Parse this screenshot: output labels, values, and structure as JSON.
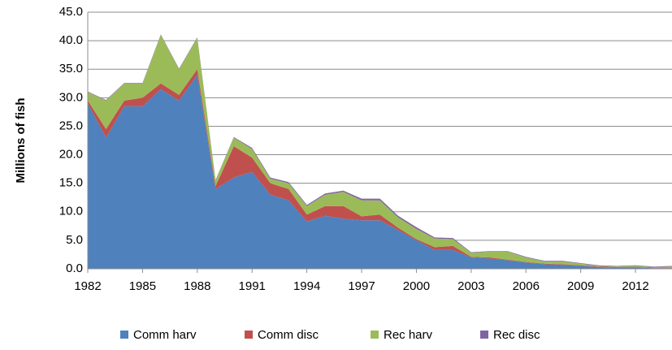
{
  "chart_data": {
    "type": "stacked-area",
    "y_label": "Millions of fish",
    "x": [
      1982,
      1983,
      1984,
      1985,
      1986,
      1987,
      1988,
      1989,
      1990,
      1991,
      1992,
      1993,
      1994,
      1995,
      1996,
      1997,
      1998,
      1999,
      2000,
      2001,
      2002,
      2003,
      2004,
      2005,
      2006,
      2007,
      2008,
      2009,
      2010,
      2011,
      2012,
      2013,
      2014
    ],
    "xlim": [
      1982,
      2014
    ],
    "xticks": [
      1982,
      1985,
      1988,
      1991,
      1994,
      1997,
      2000,
      2003,
      2006,
      2009,
      2012
    ],
    "ylim": [
      0,
      45
    ],
    "yticks": [
      {
        "value": 0,
        "label": "0.0"
      },
      {
        "value": 5,
        "label": "5.0"
      },
      {
        "value": 10,
        "label": "10.0"
      },
      {
        "value": 15,
        "label": "15.0"
      },
      {
        "value": 20,
        "label": "20.0"
      },
      {
        "value": 25,
        "label": "25.0"
      },
      {
        "value": 30,
        "label": "30.0"
      },
      {
        "value": 35,
        "label": "35.0"
      },
      {
        "value": 40,
        "label": "40.0"
      },
      {
        "value": 45,
        "label": "45.0"
      }
    ],
    "grid": true,
    "legend": "bottom",
    "series": [
      {
        "name": "Comm harv",
        "color": "#4f81bd",
        "values": [
          29,
          23,
          28.5,
          28.5,
          31.5,
          29.5,
          34,
          14,
          16,
          17,
          13,
          12,
          8.3,
          9.3,
          8.8,
          8.5,
          8.5,
          6.8,
          5,
          3.3,
          3.3,
          2,
          1.8,
          1.5,
          1.1,
          0.8,
          0.7,
          0.5,
          0.3,
          0.2,
          0.2,
          0.1,
          0.1
        ]
      },
      {
        "name": "Comm disc",
        "color": "#c0504d",
        "values": [
          0.5,
          1.5,
          1,
          1.5,
          1,
          1,
          1,
          0.5,
          5.5,
          2.5,
          2,
          2,
          1.2,
          1.7,
          2.2,
          0.7,
          1,
          0.4,
          0.2,
          0.5,
          0.7,
          0.1,
          0.2,
          0.1,
          0.1,
          0.1,
          0.1,
          0.1,
          0.1,
          0.1,
          0.1,
          0.1,
          0.1
        ]
      },
      {
        "name": "Rec harv",
        "color": "#9bbb59",
        "values": [
          1.5,
          5,
          3,
          2.5,
          8.5,
          4.5,
          5.5,
          1,
          1.5,
          1.5,
          0.8,
          1,
          1.5,
          2,
          2.5,
          2.8,
          2.5,
          1.8,
          1.8,
          1.5,
          1.2,
          0.7,
          1,
          1.4,
          0.8,
          0.4,
          0.5,
          0.3,
          0.1,
          0.1,
          0.2,
          0.1,
          0.2
        ]
      },
      {
        "name": "Rec disc",
        "color": "#8064a2",
        "values": [
          0.1,
          0.1,
          0.1,
          0.1,
          0.1,
          0.1,
          0.1,
          0.1,
          0.1,
          0.2,
          0.2,
          0.2,
          0.2,
          0.2,
          0.2,
          0.3,
          0.3,
          0.3,
          0.3,
          0.2,
          0.2,
          0.1,
          0.1,
          0.1,
          0.1,
          0.1,
          0.1,
          0.1,
          0.1,
          0.1,
          0.1,
          0.1,
          0.1
        ]
      }
    ]
  }
}
